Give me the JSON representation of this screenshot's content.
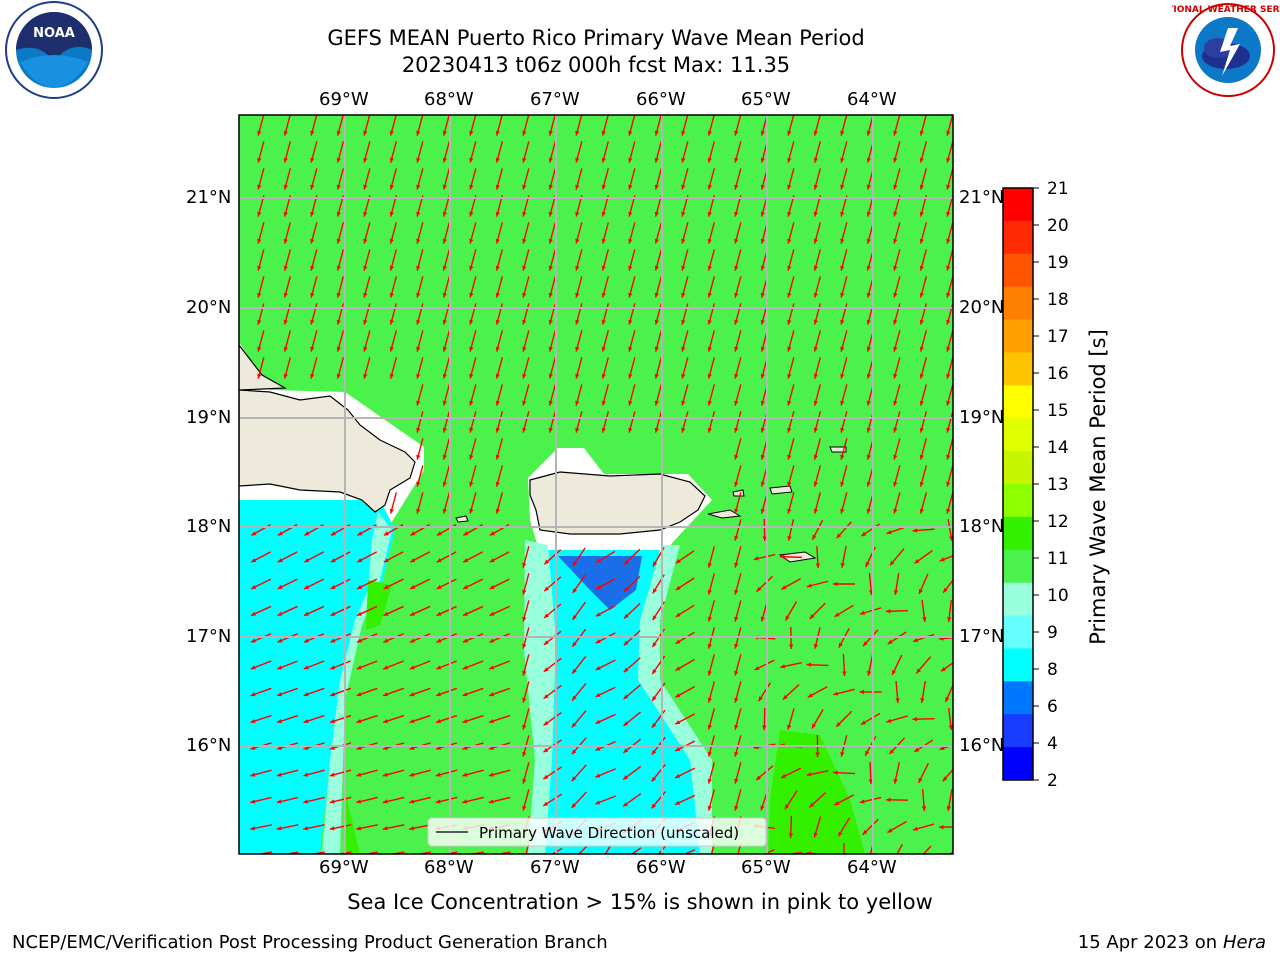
{
  "title_line1": "GEFS MEAN Puerto Rico Primary Wave Mean Period",
  "title_line2": "20230413 t06z 000h fcst   Max: 11.35",
  "lon_labels": [
    "69°W",
    "68°W",
    "67°W",
    "66°W",
    "65°W",
    "64°W"
  ],
  "lat_labels": [
    "21°N",
    "20°N",
    "19°N",
    "18°N",
    "17°N",
    "16°N"
  ],
  "legend_label": "Primary Wave Direction (unscaled)",
  "colorbar": {
    "label": "Primary Wave Mean Period [s]",
    "ticks": [
      "21",
      "20",
      "19",
      "18",
      "17",
      "16",
      "15",
      "14",
      "13",
      "12",
      "11",
      "10",
      "9",
      "8",
      "6",
      "4",
      "2"
    ],
    "colors": [
      "#ff0000",
      "#ff2a00",
      "#ff5500",
      "#ff7f00",
      "#ff9f00",
      "#ffc400",
      "#ffff00",
      "#e0ff00",
      "#c8f500",
      "#8cff00",
      "#33f000",
      "#4cf24c",
      "#99ffdd",
      "#66ffff",
      "#00ffff",
      "#0077ff",
      "#1a3cff",
      "#0000ff"
    ]
  },
  "caption": "Sea Ice Concentration > 15% is shown in pink to yellow",
  "footer_left": "NCEP/EMC/Verification Post Processing Product Generation Branch",
  "footer_right_prefix": "15 Apr 2023 on ",
  "footer_right_host": "Hera",
  "logos": {
    "left": "NOAA",
    "left_ring": "NATIONAL OCEANIC AND ATMOSPHERIC ADMINISTRATION · U.S. DEPARTMENT OF COMMERCE",
    "right_ring": "NATIONAL WEATHER SERVICE"
  },
  "colors": {
    "ocean_green": "#4cf24c",
    "land": "#eeeadb",
    "arrow": "#ff0000",
    "grid": "#bbbbbb"
  }
}
